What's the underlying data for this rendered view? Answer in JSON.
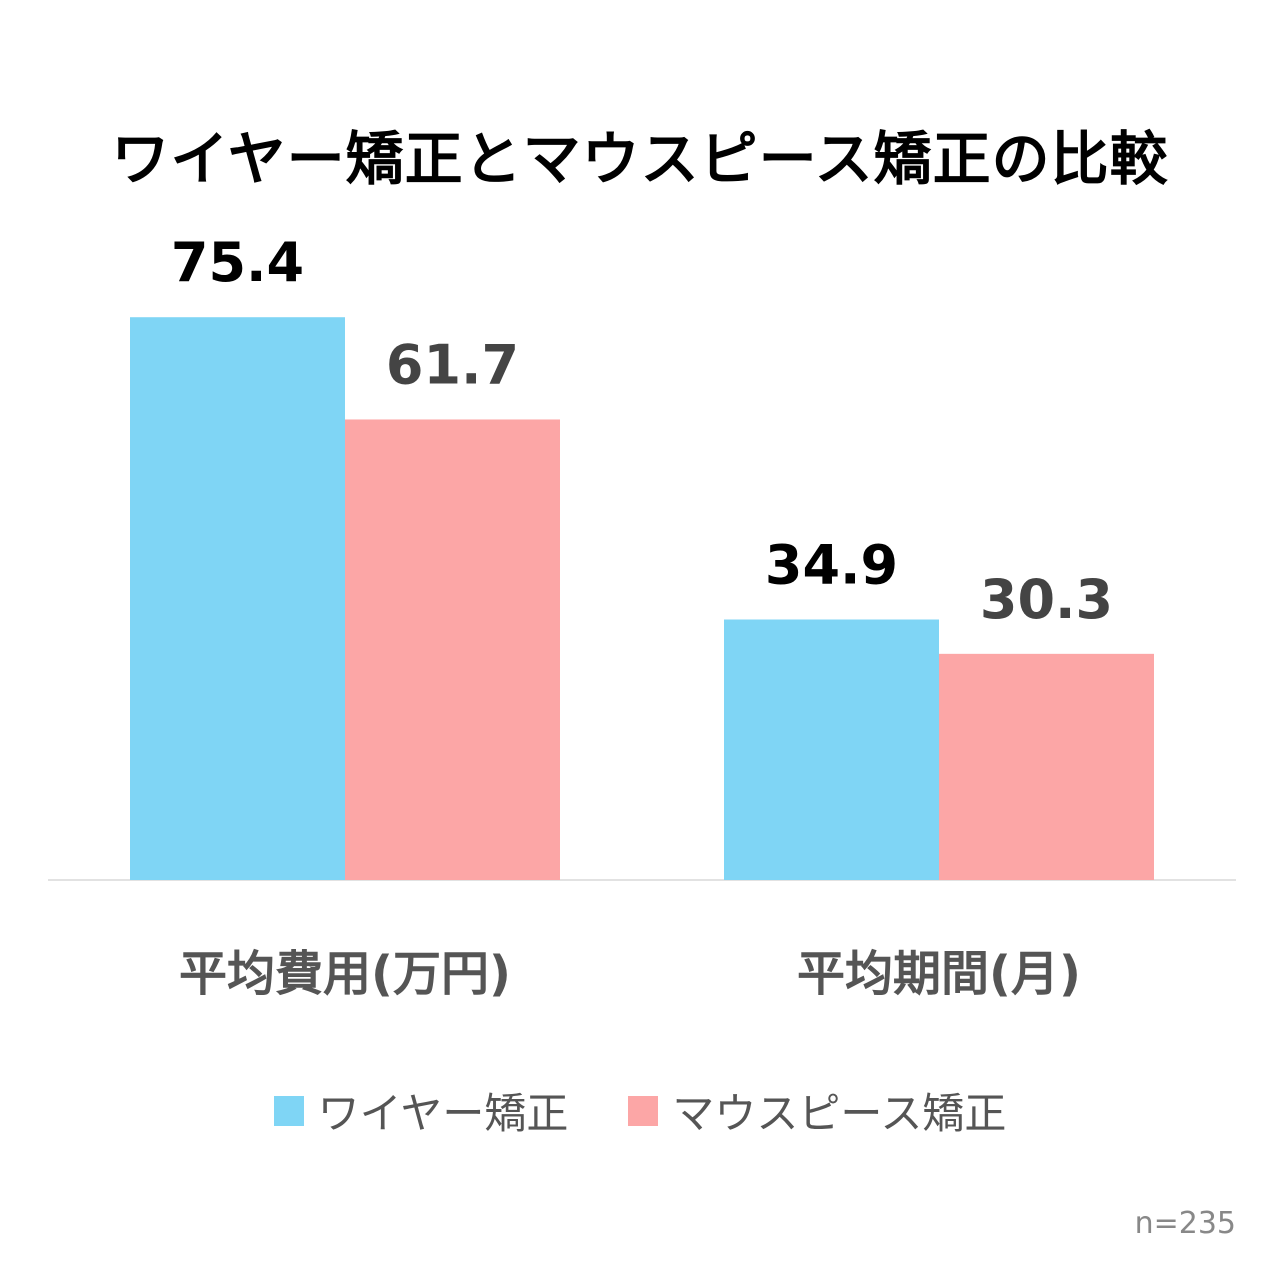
{
  "chart_data": {
    "type": "bar",
    "title": "ワイヤー矯正とマウスピース矯正の比較",
    "categories": [
      "平均費用(万円)",
      "平均期間(月)"
    ],
    "series": [
      {
        "name": "ワイヤー矯正",
        "values": [
          75.4,
          34.9
        ],
        "color": "#7fd5f5",
        "label_color": "#000000"
      },
      {
        "name": "マウスピース矯正",
        "values": [
          61.7,
          30.3
        ],
        "color": "#fca6a6",
        "label_color": "#444444"
      }
    ],
    "ylim": [
      0,
      80
    ],
    "grid": false,
    "legend_position": "bottom",
    "note": "n=235"
  }
}
